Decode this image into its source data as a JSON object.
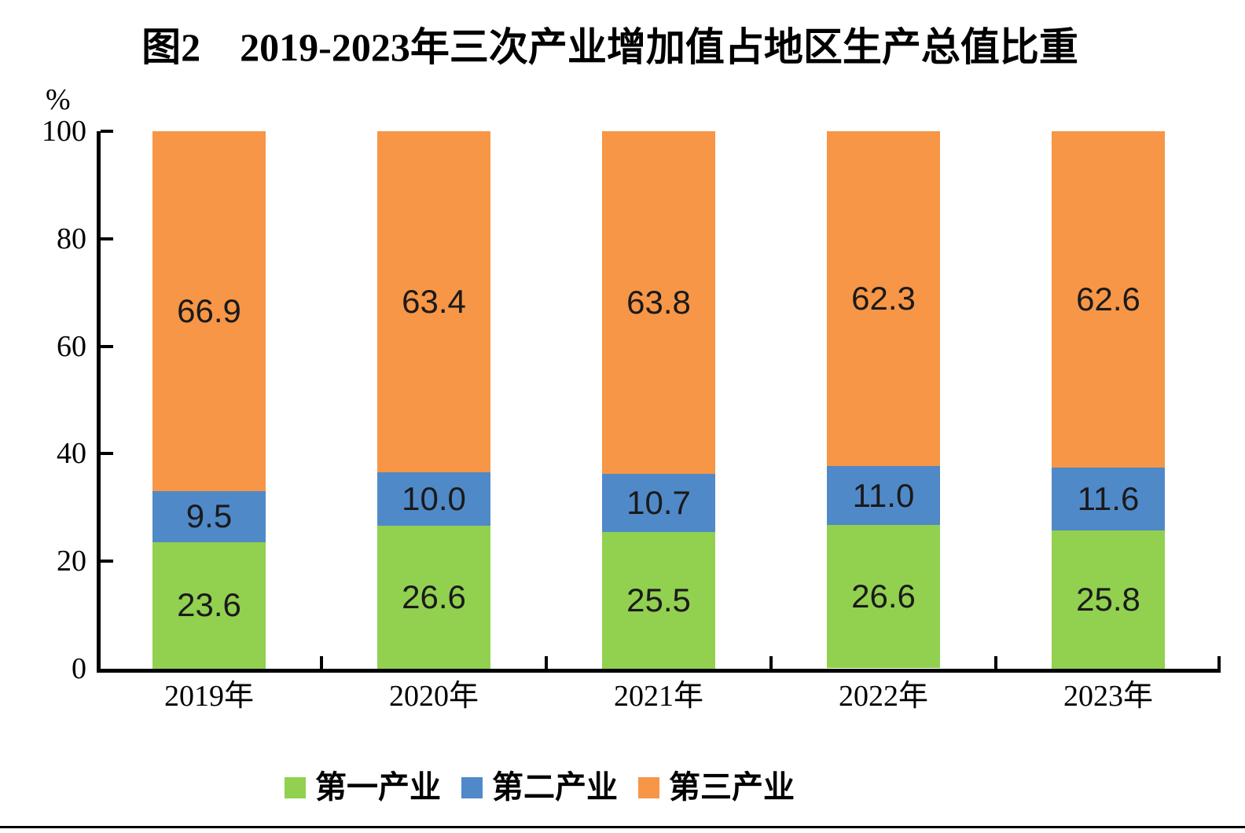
{
  "chart_data": {
    "type": "bar",
    "subtype": "stacked",
    "title": "图2　2019-2023年三次产业增加值占地区生产总值比重",
    "unit_label": "%",
    "categories": [
      "2019年",
      "2020年",
      "2021年",
      "2022年",
      "2023年"
    ],
    "series": [
      {
        "name": "第一产业",
        "color": "#92D050",
        "values": [
          23.6,
          26.6,
          25.5,
          26.6,
          25.8
        ]
      },
      {
        "name": "第二产业",
        "color": "#5089C8",
        "values": [
          9.5,
          10.0,
          10.7,
          11.0,
          11.6
        ]
      },
      {
        "name": "第三产业",
        "color": "#F79646",
        "values": [
          66.9,
          63.4,
          63.8,
          62.3,
          62.6
        ]
      }
    ],
    "ylim": [
      0,
      100
    ],
    "yticks": [
      0,
      20,
      40,
      60,
      80,
      100
    ],
    "grid": false,
    "legend_position": "bottom",
    "value_label_decimals": 1,
    "axis_color": "#000000",
    "value_label_color": "#1a1a1a"
  }
}
